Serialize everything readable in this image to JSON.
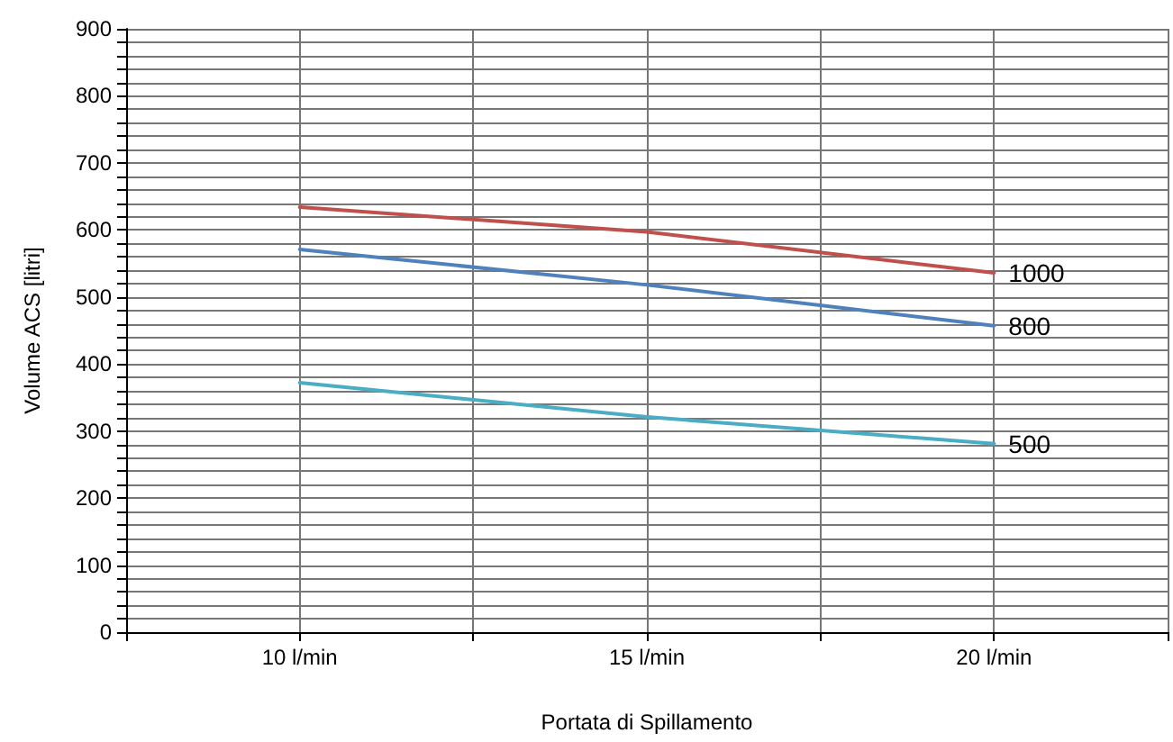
{
  "chart_data": {
    "type": "line",
    "xlabel": "Portata di Spillamento",
    "ylabel": "Volume ACS [litri]",
    "x": [
      10,
      15,
      20
    ],
    "series": [
      {
        "name": "1000",
        "color": "#c0504d",
        "values": [
          634,
          597,
          536
        ]
      },
      {
        "name": "800",
        "color": "#4f81bd",
        "values": [
          571,
          518,
          457
        ]
      },
      {
        "name": "500",
        "color": "#4bacc6",
        "values": [
          372,
          321,
          281
        ]
      }
    ],
    "xlim": [
      7.5,
      22.5
    ],
    "xticks": [
      {
        "value": 7.5,
        "label": null
      },
      {
        "value": 10,
        "label": "10 l/min"
      },
      {
        "value": 12.5,
        "label": null
      },
      {
        "value": 15,
        "label": "15 l/min"
      },
      {
        "value": 17.5,
        "label": null
      },
      {
        "value": 20,
        "label": "20 l/min"
      },
      {
        "value": 22.5,
        "label": null
      }
    ],
    "ylim": [
      0,
      900
    ],
    "yticks": [
      0,
      {
        "value": 20,
        "label": null
      },
      {
        "value": 40,
        "label": null
      },
      {
        "value": 60,
        "label": null
      },
      {
        "value": 80,
        "label": null
      },
      100,
      {
        "value": 120,
        "label": null
      },
      {
        "value": 140,
        "label": null
      },
      {
        "value": 160,
        "label": null
      },
      {
        "value": 180,
        "label": null
      },
      200,
      {
        "value": 220,
        "label": null
      },
      {
        "value": 240,
        "label": null
      },
      {
        "value": 260,
        "label": null
      },
      {
        "value": 280,
        "label": null
      },
      300,
      {
        "value": 320,
        "label": null
      },
      {
        "value": 340,
        "label": null
      },
      {
        "value": 360,
        "label": null
      },
      {
        "value": 380,
        "label": null
      },
      400,
      {
        "value": 420,
        "label": null
      },
      {
        "value": 440,
        "label": null
      },
      {
        "value": 460,
        "label": null
      },
      {
        "value": 480,
        "label": null
      },
      500,
      {
        "value": 520,
        "label": null
      },
      {
        "value": 540,
        "label": null
      },
      {
        "value": 560,
        "label": null
      },
      {
        "value": 580,
        "label": null
      },
      600,
      {
        "value": 620,
        "label": null
      },
      {
        "value": 640,
        "label": null
      },
      {
        "value": 660,
        "label": null
      },
      {
        "value": 680,
        "label": null
      },
      700,
      {
        "value": 720,
        "label": null
      },
      {
        "value": 740,
        "label": null
      },
      {
        "value": 760,
        "label": null
      },
      {
        "value": 780,
        "label": null
      },
      800,
      {
        "value": 820,
        "label": null
      },
      {
        "value": 840,
        "label": null
      },
      {
        "value": 860,
        "label": null
      },
      {
        "value": 880,
        "label": null
      },
      900
    ],
    "grid": true,
    "marker": "none",
    "line_style": "solid"
  }
}
